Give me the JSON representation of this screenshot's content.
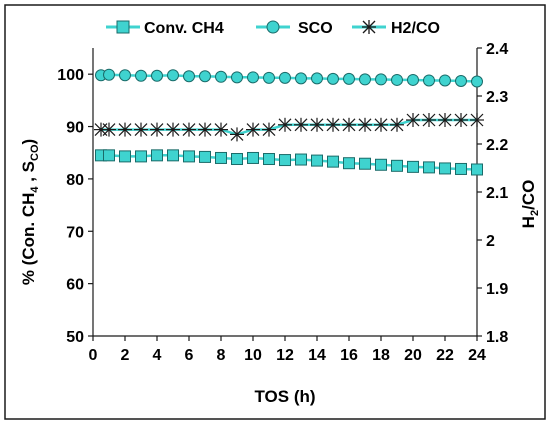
{
  "chart_data": {
    "type": "line",
    "xlabel": "TOS (h)",
    "ylabel_left": "% (Con. CH4 , SCO)",
    "ylabel_right": "H2/CO",
    "xlim": [
      0,
      24
    ],
    "ylim_left": [
      50,
      105
    ],
    "ylim_right": [
      1.8,
      2.4
    ],
    "x_ticks": [
      "0",
      "2",
      "4",
      "6",
      "8",
      "10",
      "12",
      "14",
      "16",
      "18",
      "20",
      "22",
      "24"
    ],
    "y_left_ticks": [
      "50",
      "60",
      "70",
      "80",
      "90",
      "100"
    ],
    "y_right_ticks": [
      "1.8",
      "1.9",
      "2",
      "2.1",
      "2.2",
      "2.3",
      "2.4"
    ],
    "grid": false,
    "legend_position": "top",
    "series": [
      {
        "name": "Conv. CH4",
        "axis": "left",
        "marker": "square",
        "color": "#3fd3cf",
        "x": [
          0.5,
          1,
          2,
          3,
          4,
          5,
          6,
          7,
          8,
          9,
          10,
          11,
          12,
          13,
          14,
          15,
          16,
          17,
          18,
          19,
          20,
          21,
          22,
          23,
          24
        ],
        "values": [
          84.5,
          84.5,
          84.3,
          84.3,
          84.5,
          84.5,
          84.3,
          84.2,
          84.0,
          83.8,
          84.0,
          83.8,
          83.6,
          83.7,
          83.5,
          83.3,
          83.0,
          82.9,
          82.7,
          82.5,
          82.3,
          82.2,
          82.0,
          81.9,
          81.8
        ]
      },
      {
        "name": "SCO",
        "axis": "left",
        "marker": "circle",
        "color": "#3fd3cf",
        "x": [
          0.5,
          1,
          2,
          3,
          4,
          5,
          6,
          7,
          8,
          9,
          10,
          11,
          12,
          13,
          14,
          15,
          16,
          17,
          18,
          19,
          20,
          21,
          22,
          23,
          24
        ],
        "values": [
          99.8,
          99.9,
          99.8,
          99.7,
          99.7,
          99.8,
          99.6,
          99.6,
          99.5,
          99.4,
          99.4,
          99.3,
          99.3,
          99.2,
          99.2,
          99.1,
          99.1,
          99.0,
          99.0,
          98.9,
          98.9,
          98.8,
          98.8,
          98.7,
          98.6
        ]
      },
      {
        "name": "H2/CO",
        "axis": "right",
        "marker": "star",
        "color": "#3fd3cf",
        "x": [
          0.5,
          1,
          2,
          3,
          4,
          5,
          6,
          7,
          8,
          9,
          10,
          11,
          12,
          13,
          14,
          15,
          16,
          17,
          18,
          19,
          20,
          21,
          22,
          23,
          24
        ],
        "values": [
          2.23,
          2.23,
          2.23,
          2.23,
          2.23,
          2.23,
          2.23,
          2.23,
          2.23,
          2.22,
          2.23,
          2.23,
          2.24,
          2.24,
          2.24,
          2.24,
          2.24,
          2.24,
          2.24,
          2.24,
          2.25,
          2.25,
          2.25,
          2.25,
          2.25
        ]
      }
    ]
  }
}
